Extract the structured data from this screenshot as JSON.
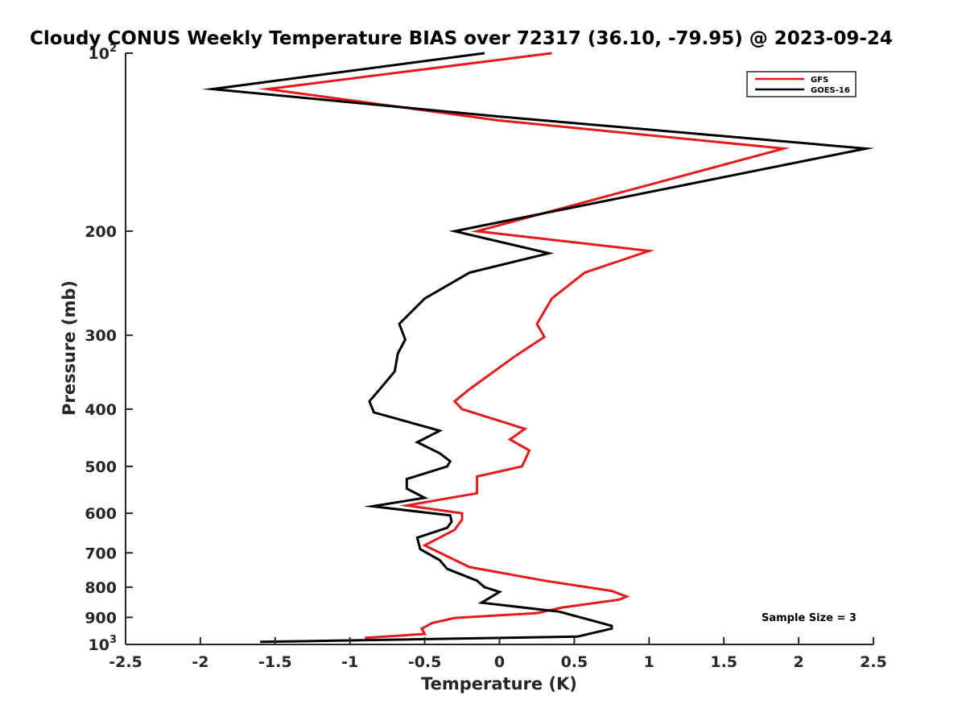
{
  "chart_data": {
    "type": "line",
    "title": "Cloudy CONUS Weekly Temperature BIAS over 72317 (36.10, -79.95) @ 2023-09-24",
    "xlabel": "Temperature (K)",
    "ylabel": "Pressure (mb)",
    "xlim": [
      -2.5,
      2.5
    ],
    "ylim": [
      100,
      1000
    ],
    "yscale": "log",
    "y_reversed": true,
    "xticks": [
      {
        "value": -2.5,
        "label": "-2.5"
      },
      {
        "value": -2,
        "label": "-2"
      },
      {
        "value": -1.5,
        "label": "-1.5"
      },
      {
        "value": -1,
        "label": "-1"
      },
      {
        "value": -0.5,
        "label": "-0.5"
      },
      {
        "value": 0,
        "label": "0"
      },
      {
        "value": 0.5,
        "label": "0.5"
      },
      {
        "value": 1,
        "label": "1"
      },
      {
        "value": 1.5,
        "label": "1.5"
      },
      {
        "value": 2,
        "label": "2"
      },
      {
        "value": 2.5,
        "label": "2.5"
      }
    ],
    "yticks": [
      {
        "value": 100,
        "label": "10",
        "exp": "2"
      },
      {
        "value": 200,
        "label": "200"
      },
      {
        "value": 300,
        "label": "300"
      },
      {
        "value": 400,
        "label": "400"
      },
      {
        "value": 500,
        "label": "500"
      },
      {
        "value": 600,
        "label": "600"
      },
      {
        "value": 700,
        "label": "700"
      },
      {
        "value": 800,
        "label": "800"
      },
      {
        "value": 900,
        "label": "900"
      },
      {
        "value": 1000,
        "label": "10",
        "exp": "3"
      }
    ],
    "grid": false,
    "legend_position": "top-right",
    "series": [
      {
        "name": "GFS",
        "color": "#e41a1c",
        "points": [
          {
            "x": 0.35,
            "y": 100
          },
          {
            "x": -1.55,
            "y": 115
          },
          {
            "x": 0.0,
            "y": 130
          },
          {
            "x": 1.9,
            "y": 145
          },
          {
            "x": -0.15,
            "y": 200
          },
          {
            "x": 1.0,
            "y": 216
          },
          {
            "x": 0.57,
            "y": 235
          },
          {
            "x": 0.35,
            "y": 260
          },
          {
            "x": 0.25,
            "y": 287
          },
          {
            "x": 0.3,
            "y": 302
          },
          {
            "x": 0.1,
            "y": 326
          },
          {
            "x": -0.2,
            "y": 370
          },
          {
            "x": -0.3,
            "y": 388
          },
          {
            "x": -0.25,
            "y": 400
          },
          {
            "x": 0.17,
            "y": 432
          },
          {
            "x": 0.07,
            "y": 450
          },
          {
            "x": 0.2,
            "y": 470
          },
          {
            "x": 0.15,
            "y": 500
          },
          {
            "x": -0.15,
            "y": 520
          },
          {
            "x": -0.15,
            "y": 555
          },
          {
            "x": -0.62,
            "y": 582
          },
          {
            "x": -0.25,
            "y": 600
          },
          {
            "x": -0.25,
            "y": 615
          },
          {
            "x": -0.3,
            "y": 640
          },
          {
            "x": -0.5,
            "y": 680
          },
          {
            "x": -0.2,
            "y": 740
          },
          {
            "x": 0.3,
            "y": 780
          },
          {
            "x": 0.75,
            "y": 812
          },
          {
            "x": 0.85,
            "y": 830
          },
          {
            "x": 0.8,
            "y": 840
          },
          {
            "x": 0.42,
            "y": 866
          },
          {
            "x": 0.25,
            "y": 885
          },
          {
            "x": -0.3,
            "y": 902
          },
          {
            "x": -0.45,
            "y": 920
          },
          {
            "x": -0.52,
            "y": 940
          },
          {
            "x": -0.5,
            "y": 960
          },
          {
            "x": -0.9,
            "y": 975
          }
        ]
      },
      {
        "name": "GOES-16",
        "color": "#000000",
        "points": [
          {
            "x": -0.1,
            "y": 100
          },
          {
            "x": -1.92,
            "y": 115
          },
          {
            "x": 0.0,
            "y": 128
          },
          {
            "x": 2.45,
            "y": 145
          },
          {
            "x": -0.3,
            "y": 200
          },
          {
            "x": 0.33,
            "y": 218
          },
          {
            "x": -0.2,
            "y": 235
          },
          {
            "x": -0.5,
            "y": 260
          },
          {
            "x": -0.67,
            "y": 287
          },
          {
            "x": -0.63,
            "y": 305
          },
          {
            "x": -0.68,
            "y": 322
          },
          {
            "x": -0.7,
            "y": 345
          },
          {
            "x": -0.8,
            "y": 370
          },
          {
            "x": -0.87,
            "y": 388
          },
          {
            "x": -0.84,
            "y": 405
          },
          {
            "x": -0.4,
            "y": 435
          },
          {
            "x": -0.55,
            "y": 455
          },
          {
            "x": -0.4,
            "y": 475
          },
          {
            "x": -0.33,
            "y": 490
          },
          {
            "x": -0.35,
            "y": 500
          },
          {
            "x": -0.62,
            "y": 525
          },
          {
            "x": -0.62,
            "y": 545
          },
          {
            "x": -0.5,
            "y": 565
          },
          {
            "x": -0.85,
            "y": 584
          },
          {
            "x": -0.33,
            "y": 605
          },
          {
            "x": -0.32,
            "y": 620
          },
          {
            "x": -0.35,
            "y": 635
          },
          {
            "x": -0.55,
            "y": 660
          },
          {
            "x": -0.53,
            "y": 690
          },
          {
            "x": -0.4,
            "y": 720
          },
          {
            "x": -0.35,
            "y": 745
          },
          {
            "x": -0.15,
            "y": 780
          },
          {
            "x": -0.1,
            "y": 800
          },
          {
            "x": 0.0,
            "y": 815
          },
          {
            "x": -0.12,
            "y": 850
          },
          {
            "x": 0.4,
            "y": 880
          },
          {
            "x": 0.75,
            "y": 930
          },
          {
            "x": 0.75,
            "y": 940
          },
          {
            "x": 0.52,
            "y": 970
          },
          {
            "x": -1.6,
            "y": 990
          }
        ]
      }
    ],
    "annotations": [
      {
        "text": "Sample Size = 3"
      }
    ]
  }
}
